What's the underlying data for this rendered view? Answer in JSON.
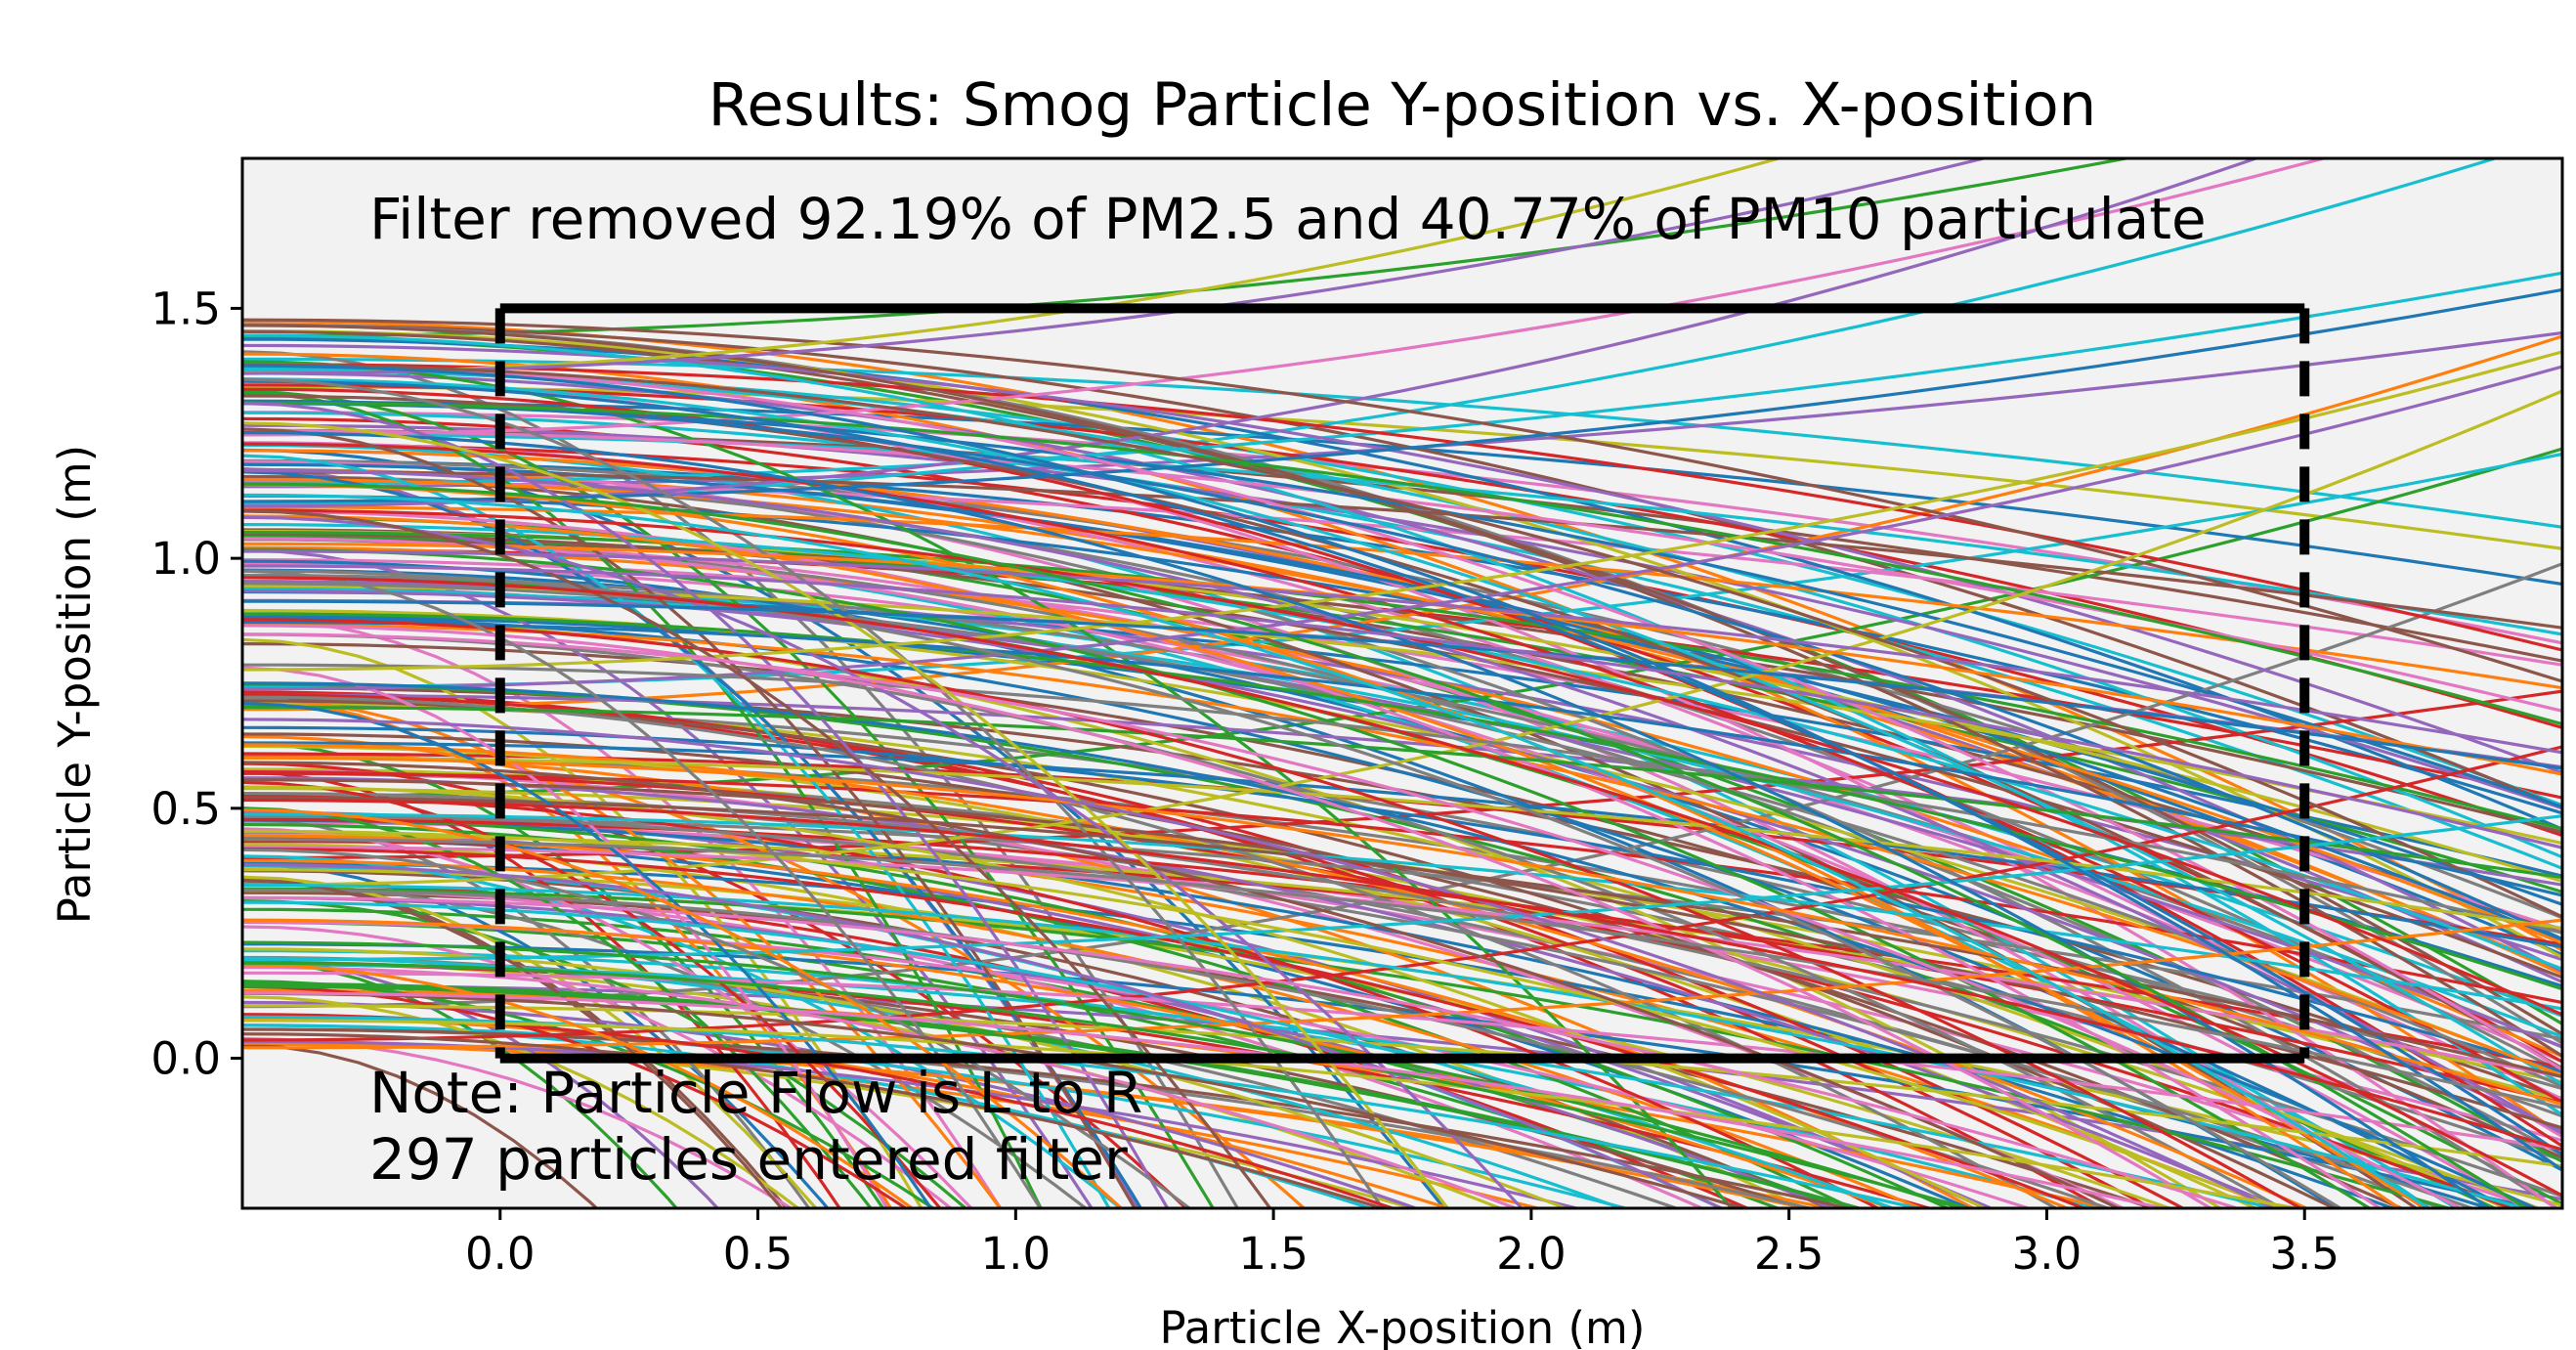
{
  "chart_data": {
    "type": "line",
    "title": "Results: Smog Particle Y-position vs. X-position",
    "xlabel": "Particle X-position (m)",
    "ylabel": "Particle Y-position (m)",
    "xlim": [
      -0.5,
      4.0
    ],
    "ylim": [
      -0.3,
      1.8
    ],
    "xticks": [
      0.0,
      0.5,
      1.0,
      1.5,
      2.0,
      2.5,
      3.0,
      3.5
    ],
    "xtick_labels": [
      "0.0",
      "0.5",
      "1.0",
      "1.5",
      "2.0",
      "2.5",
      "3.0",
      "3.5"
    ],
    "yticks": [
      0.0,
      0.5,
      1.0,
      1.5
    ],
    "ytick_labels": [
      "0.0",
      "0.5",
      "1.0",
      "1.5"
    ],
    "grid": false,
    "legend": "none",
    "background_color": "#f2f2f2",
    "filter_box": {
      "x": [
        0.0,
        3.5
      ],
      "y": [
        0.0,
        1.5
      ],
      "top_bottom_style": "solid",
      "sides_style": "dashed",
      "color": "#000000"
    },
    "annotations": {
      "efficiency": "Filter removed 92.19% of PM2.5 and 40.77% of PM10 particulate",
      "flow_note": "Note: Particle Flow is L to R",
      "count_note": "297 particles entered filter"
    },
    "particle_count": 297,
    "series_colors": [
      "#1f77b4",
      "#ff7f0e",
      "#2ca02c",
      "#d62728",
      "#9467bd",
      "#8c564b",
      "#e377c2",
      "#7f7f7f",
      "#bcbd22",
      "#17becf"
    ],
    "trajectory_shape": "y = y0 - k*(x + 0.5)^2 (curves bending downward as x increases; some bending upward)"
  }
}
